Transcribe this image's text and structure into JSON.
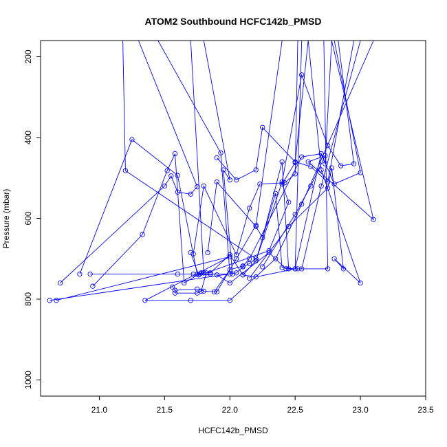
{
  "chart_data": {
    "type": "line",
    "title": "ATOM2 Southbound HCFC142b_PMSD",
    "xlabel": "HCFC142b_PMSD",
    "ylabel": "Pressure (mbar)",
    "xlim": [
      20.55,
      23.5
    ],
    "ylim": [
      1040,
      160
    ],
    "y_reversed": true,
    "x_ticks": [
      "21.0",
      "21.5",
      "22.0",
      "22.5",
      "23.0",
      "23.5"
    ],
    "y_ticks": [
      "200",
      "400",
      "600",
      "800",
      "1000"
    ],
    "series_color": "#0000ff",
    "grid": false,
    "series": [
      {
        "x": [
          20.62,
          22.05,
          22.1,
          22.15,
          22.2,
          21.2,
          21.18
        ],
        "y": [
          803,
          735,
          720,
          712,
          700,
          482,
          160
        ]
      },
      {
        "x": [
          20.67,
          22.0,
          21.35,
          21.7,
          22.0,
          22.35,
          22.55,
          23.1
        ],
        "y": [
          803,
          695,
          803,
          803,
          803,
          700,
          565,
          160
        ]
      },
      {
        "x": [
          20.7,
          21.5,
          21.55,
          21.6,
          21.7,
          21.75,
          21.3
        ],
        "y": [
          760,
          520,
          495,
          535,
          540,
          522,
          160
        ]
      },
      {
        "x": [
          20.85,
          21.25,
          21.6,
          21.75,
          21.85,
          22.0,
          21.93,
          21.45
        ],
        "y": [
          738,
          405,
          494,
          738,
          738,
          738,
          438,
          160
        ]
      },
      {
        "x": [
          20.93,
          21.6,
          21.72,
          21.77,
          22.02,
          21.95,
          22.0,
          21.8
        ],
        "y": [
          738,
          738,
          738,
          738,
          738,
          480,
          505,
          160
        ]
      },
      {
        "x": [
          20.95,
          21.33,
          21.52,
          21.58,
          21.65,
          21.78,
          21.8,
          21.7
        ],
        "y": [
          768,
          640,
          482,
          440,
          760,
          735,
          735,
          160
        ]
      },
      {
        "x": [
          21.56,
          21.58,
          21.75,
          21.8,
          21.9,
          22.05,
          22.2,
          22.4
        ],
        "y": [
          770,
          778,
          775,
          780,
          782,
          700,
          617,
          160
        ]
      },
      {
        "x": [
          21.58,
          21.75,
          21.78,
          21.82,
          22.3,
          22.45,
          22.4,
          22.5,
          22.6
        ],
        "y": [
          785,
          785,
          780,
          735,
          680,
          560,
          515,
          462,
          160
        ]
      },
      {
        "x": [
          21.7,
          21.76,
          21.8,
          21.85,
          22.0,
          22.1,
          22.2,
          22.5,
          22.55
        ],
        "y": [
          685,
          740,
          735,
          735,
          690,
          740,
          745,
          725,
          160
        ]
      },
      {
        "x": [
          21.72,
          21.8,
          22.05,
          22.15,
          22.23,
          22.42,
          22.5,
          22.52
        ],
        "y": [
          688,
          520,
          690,
          575,
          515,
          512,
          490,
          160
        ]
      },
      {
        "x": [
          21.83,
          21.9,
          22.2,
          22.25,
          22.4,
          22.45,
          22.75,
          22.72
        ],
        "y": [
          685,
          510,
          620,
          648,
          460,
          725,
          725,
          160
        ]
      },
      {
        "x": [
          21.88,
          22.0,
          22.1,
          22.15,
          22.55,
          22.7,
          22.73,
          22.78
        ],
        "y": [
          782,
          727,
          718,
          700,
          448,
          440,
          465,
          160
        ]
      },
      {
        "x": [
          21.9,
          22.0,
          22.3,
          22.43,
          22.52,
          22.55,
          22.7,
          23.0
        ],
        "y": [
          740,
          760,
          685,
          725,
          725,
          725,
          520,
          160
        ]
      },
      {
        "x": [
          21.9,
          22.05,
          22.2,
          22.25,
          22.5,
          22.62,
          22.75,
          22.95
        ],
        "y": [
          450,
          505,
          480,
          375,
          460,
          472,
          510,
          160
        ]
      },
      {
        "x": [
          22.1,
          22.2,
          22.4,
          22.55,
          22.75,
          22.85,
          22.95,
          22.83
        ],
        "y": [
          740,
          705,
          510,
          245,
          420,
          470,
          465,
          160
        ]
      },
      {
        "x": [
          22.15,
          22.45,
          22.75,
          22.78,
          22.87,
          22.8,
          23.0,
          22.7,
          22.6
        ],
        "y": [
          748,
          620,
          525,
          475,
          725,
          700,
          760,
          480,
          160
        ]
      },
      {
        "x": [
          22.2,
          22.35,
          22.4,
          22.5,
          22.7,
          22.8,
          23.0,
          22.8
        ],
        "y": [
          705,
          538,
          722,
          725,
          440,
          515,
          487,
          160
        ]
      },
      {
        "x": [
          22.25,
          22.5,
          22.62,
          22.73,
          22.6,
          23.1,
          22.78
        ],
        "y": [
          720,
          590,
          520,
          445,
          460,
          603,
          160
        ]
      }
    ]
  }
}
